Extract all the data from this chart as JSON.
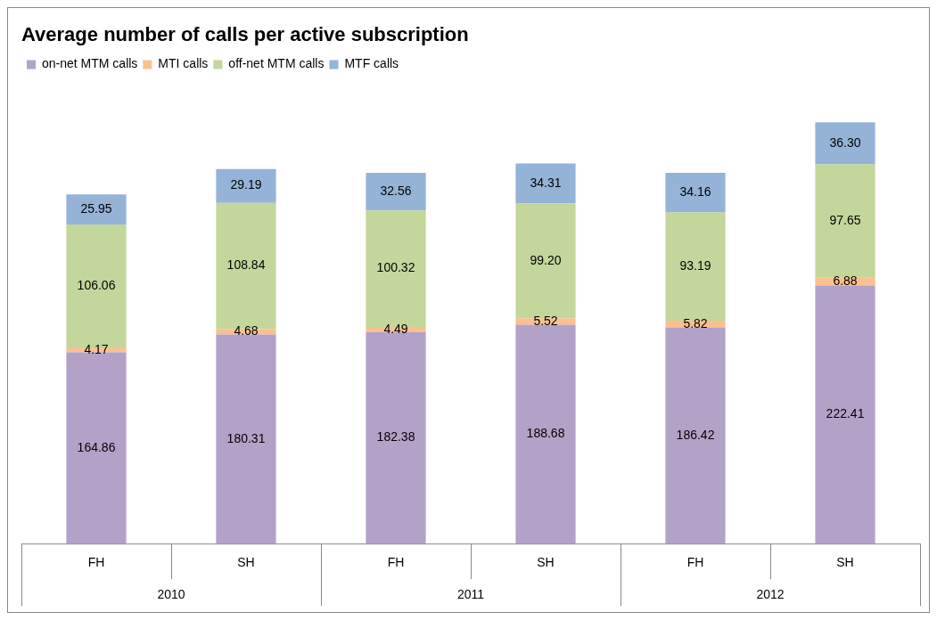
{
  "chart_data": {
    "type": "bar",
    "title": "Average number of calls per active subscription",
    "categories": [
      "FH",
      "SH",
      "FH",
      "SH",
      "FH",
      "SH"
    ],
    "stacked": true,
    "legend": "top left",
    "grid": false,
    "annotations": [
      "2010",
      "2011",
      "2012"
    ],
    "series": [
      {
        "name": "on-net MTM calls",
        "color": "#b3a2c7",
        "values": [
          164.86,
          180.31,
          182.38,
          188.68,
          186.42,
          222.41
        ],
        "value_labels": [
          "164.86",
          "180.31",
          "182.38",
          "188.68",
          "186.42",
          "222.41"
        ]
      },
      {
        "name": "MTI calls",
        "color": "#fac090",
        "values": [
          4.17,
          4.68,
          4.49,
          5.52,
          5.82,
          6.88
        ],
        "value_labels": [
          "4.17",
          "4.68",
          "4.49",
          "5.52",
          "5.82",
          "6.88"
        ]
      },
      {
        "name": "off-net MTM calls",
        "color": "#c3d69b",
        "values": [
          106.06,
          108.84,
          100.32,
          99.2,
          93.19,
          97.65
        ],
        "value_labels": [
          "106.06",
          "108.84",
          "100.32",
          "99.20",
          "93.19",
          "97.65"
        ]
      },
      {
        "name": "MTF calls",
        "color": "#95b3d7",
        "values": [
          25.95,
          29.19,
          32.56,
          34.31,
          34.16,
          36.3
        ],
        "value_labels": [
          "25.95",
          "29.19",
          "32.56",
          "34.31",
          "34.16",
          "36.30"
        ]
      }
    ]
  }
}
